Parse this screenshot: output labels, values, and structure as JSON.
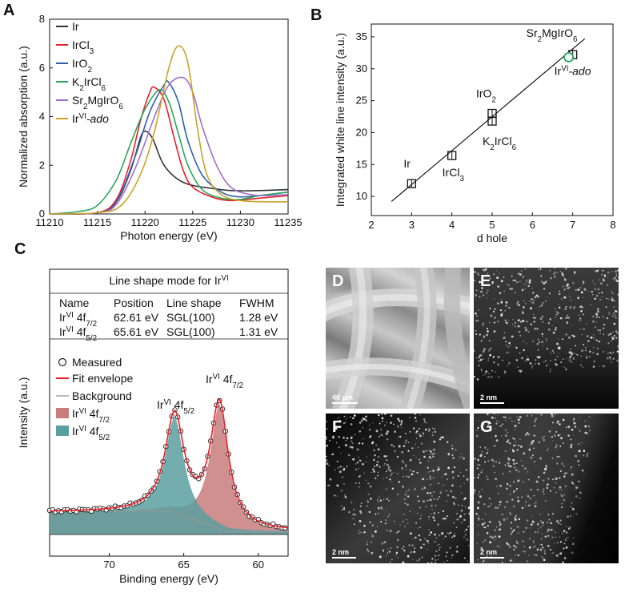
{
  "panels": {
    "A": "A",
    "B": "B",
    "C": "C",
    "D": "D",
    "E": "E",
    "F": "F",
    "G": "G"
  },
  "colors": {
    "Ir": "#333333",
    "IrCl3": "#e8202a",
    "IrO2": "#2e5fb0",
    "K2IrCl6": "#2aa65a",
    "Sr2MgIrO6": "#a070c8",
    "IrVI_ado": "#c8a428",
    "fit": "#e8202a",
    "fill72": "#c97c7c",
    "fill52": "#5a9f9f"
  },
  "chart_data": [
    {
      "id": "A",
      "type": "line",
      "xlabel": "Photon energy (eV)",
      "ylabel": "Normalized absorption (a.u.)",
      "xlim": [
        11210,
        11235
      ],
      "ylim": [
        0,
        8
      ],
      "xticks": [
        11210,
        11215,
        11220,
        11225,
        11230,
        11235
      ],
      "yticks": [
        0,
        2,
        4,
        6,
        8
      ],
      "series": [
        {
          "name": "Ir",
          "key": "Ir",
          "points": [
            [
              11210,
              0
            ],
            [
              11215,
              0.05
            ],
            [
              11217,
              0.5
            ],
            [
              11218.5,
              1.8
            ],
            [
              11219.5,
              3.1
            ],
            [
              11220,
              3.4
            ],
            [
              11220.8,
              3.1
            ],
            [
              11222,
              2.0
            ],
            [
              11224,
              1.3
            ],
            [
              11227,
              1.05
            ],
            [
              11230,
              0.95
            ],
            [
              11235,
              1.0
            ]
          ]
        },
        {
          "name": "IrCl",
          "sub": "3",
          "key": "IrCl3",
          "points": [
            [
              11210,
              0
            ],
            [
              11215,
              0.05
            ],
            [
              11217,
              0.6
            ],
            [
              11218.5,
              2.2
            ],
            [
              11219.5,
              3.8
            ],
            [
              11220.5,
              5.0
            ],
            [
              11221,
              5.2
            ],
            [
              11222,
              4.7
            ],
            [
              11223,
              3.2
            ],
            [
              11224,
              1.8
            ],
            [
              11225,
              1.1
            ],
            [
              11227,
              0.7
            ],
            [
              11229,
              0.55
            ],
            [
              11232,
              0.65
            ],
            [
              11235,
              0.75
            ]
          ]
        },
        {
          "name": "IrO",
          "sub": "2",
          "key": "IrO2",
          "points": [
            [
              11210,
              0
            ],
            [
              11215,
              0.05
            ],
            [
              11217,
              0.5
            ],
            [
              11219,
              2.4
            ],
            [
              11220.5,
              4.2
            ],
            [
              11222,
              5.3
            ],
            [
              11222.5,
              5.4
            ],
            [
              11223.5,
              4.6
            ],
            [
              11224.5,
              3.0
            ],
            [
              11226,
              1.6
            ],
            [
              11228,
              0.9
            ],
            [
              11230,
              0.7
            ],
            [
              11233,
              0.8
            ],
            [
              11235,
              0.9
            ]
          ]
        },
        {
          "name": "K",
          "sub": "2",
          "name2": "IrCl",
          "sub2": "6",
          "key": "K2IrCl6",
          "points": [
            [
              11210,
              0
            ],
            [
              11213,
              0.1
            ],
            [
              11215,
              0.35
            ],
            [
              11217,
              1.4
            ],
            [
              11218.5,
              2.9
            ],
            [
              11220,
              4.3
            ],
            [
              11221.5,
              5.1
            ],
            [
              11222.5,
              4.6
            ],
            [
              11223.5,
              3.3
            ],
            [
              11224.5,
              2.0
            ],
            [
              11226,
              1.0
            ],
            [
              11228,
              0.65
            ],
            [
              11230,
              0.6
            ],
            [
              11232,
              0.75
            ],
            [
              11235,
              0.9
            ]
          ]
        },
        {
          "name": "Sr",
          "sub": "2",
          "name2": "MgIrO",
          "sub2": "6",
          "key": "Sr2MgIrO6",
          "points": [
            [
              11210,
              0
            ],
            [
              11215,
              0.05
            ],
            [
              11217,
              0.4
            ],
            [
              11219,
              1.9
            ],
            [
              11221,
              4.0
            ],
            [
              11222.5,
              5.3
            ],
            [
              11224,
              5.6
            ],
            [
              11225,
              5.0
            ],
            [
              11226,
              3.6
            ],
            [
              11227.5,
              2.0
            ],
            [
              11229,
              1.1
            ],
            [
              11231,
              0.8
            ],
            [
              11233,
              0.75
            ],
            [
              11235,
              0.8
            ]
          ]
        },
        {
          "name": "Ir",
          "sup": "VI",
          "name2": "-ado",
          "key": "IrVI_ado",
          "points": [
            [
              11210,
              0
            ],
            [
              11215,
              0.05
            ],
            [
              11217.5,
              0.35
            ],
            [
              11219.5,
              1.6
            ],
            [
              11221,
              3.4
            ],
            [
              11222.5,
              6.0
            ],
            [
              11223.5,
              6.9
            ],
            [
              11224.5,
              6.2
            ],
            [
              11225.5,
              3.5
            ],
            [
              11226.5,
              1.6
            ],
            [
              11228,
              0.8
            ],
            [
              11230,
              0.55
            ],
            [
              11233,
              0.5
            ],
            [
              11235,
              0.5
            ]
          ]
        }
      ]
    },
    {
      "id": "B",
      "type": "scatter",
      "xlabel": "d hole",
      "ylabel": "Integrated white line intensity (a.u.)",
      "xlim": [
        2,
        8
      ],
      "ylim": [
        7,
        37
      ],
      "xticks": [
        2,
        3,
        4,
        5,
        6,
        7,
        8
      ],
      "yticks": [
        10,
        15,
        20,
        25,
        30,
        35
      ],
      "points": [
        {
          "x": 3,
          "y": 12.0,
          "err": 0.7,
          "label": "Ir"
        },
        {
          "x": 4,
          "y": 16.4,
          "err": 0.6,
          "label": "IrCl",
          "sub": "3"
        },
        {
          "x": 5,
          "y": 21.8,
          "err": 0.6,
          "label": "K",
          "sub": "2",
          "label2": "IrCl",
          "sub2": "6"
        },
        {
          "x": 5,
          "y": 23.0,
          "err": 0.7,
          "label": "IrO",
          "sub": "2"
        },
        {
          "x": 7,
          "y": 32.2,
          "err": 0.8,
          "label": "Sr",
          "sub": "2",
          "label2": "MgIrO",
          "sub2": "6"
        },
        {
          "x": 6.9,
          "y": 31.8,
          "err": 0,
          "label": "Ir",
          "sup": "VI",
          "label2": "-ado"
        }
      ],
      "fit_line": [
        [
          2.5,
          9.2
        ],
        [
          7.3,
          34.7
        ]
      ]
    },
    {
      "id": "C",
      "type": "line",
      "xlabel": "Binding energy (eV)",
      "ylabel": "Intensity (a.u.)",
      "xlim": [
        74,
        58
      ],
      "xticks": [
        70,
        65,
        60
      ],
      "peaks": [
        {
          "name": "4f7/2",
          "position": 62.61,
          "fwhm": 1.28,
          "height": 1.0
        },
        {
          "name": "4f5/2",
          "position": 65.61,
          "fwhm": 1.31,
          "height": 0.78
        }
      ],
      "background_level": 0.17,
      "legend": [
        "Measured",
        "Fit envelope",
        "Background",
        "4f7/2",
        "4f5/2"
      ]
    }
  ],
  "panelA": {
    "legend": [
      {
        "key": "Ir",
        "main": "Ir"
      },
      {
        "key": "IrCl3",
        "main": "IrCl",
        "sub": "3"
      },
      {
        "key": "IrO2",
        "main": "IrO",
        "sub": "2"
      },
      {
        "key": "K2IrCl6",
        "main": "K",
        "sub": "2",
        "main2": "IrCl",
        "sub2": "6"
      },
      {
        "key": "Sr2MgIrO6",
        "main": "Sr",
        "sub": "2",
        "main2": "MgIrO",
        "sub2": "6"
      },
      {
        "key": "IrVI_ado",
        "main": "Ir",
        "sup": "VI",
        "main2": "-ado",
        "italic2": true
      }
    ]
  },
  "panelC": {
    "table_title": "Line shape mode for Ir",
    "table_title_sup": "VI",
    "headers": [
      "Name",
      "Position",
      "Line shape",
      "FWHM"
    ],
    "rows": [
      {
        "name": "Ir",
        "sup": "VI",
        "rest": " 4f",
        "sub": "7/2",
        "position": "62.61 eV",
        "shape": "SGL(100)",
        "fwhm": "1.28 eV"
      },
      {
        "name": "Ir",
        "sup": "VI",
        "rest": " 4f",
        "sub": "5/2",
        "position": "65.61 eV",
        "shape": "SGL(100)",
        "fwhm": "1.31 eV"
      }
    ],
    "legend": {
      "measured": "Measured",
      "fit": "Fit envelope",
      "background": "Background",
      "p72": "Ir",
      "p72sup": "VI",
      "p72rest": " 4f",
      "p72sub": "7/2",
      "p52": "Ir",
      "p52sup": "VI",
      "p52rest": " 4f",
      "p52sub": "5/2"
    },
    "peak_labels": {
      "p72": "Ir",
      "p72sup": "VI",
      "p72rest": " 4f",
      "p72sub": "7/2",
      "p52": "Ir",
      "p52sup": "VI",
      "p52rest": " 4f",
      "p52sub": "5/2"
    }
  },
  "micrographs": {
    "D": {
      "scale": "40 μm"
    },
    "E": {
      "scale": "2 nm"
    },
    "F": {
      "scale": "2 nm"
    },
    "G": {
      "scale": "2 nm"
    }
  }
}
